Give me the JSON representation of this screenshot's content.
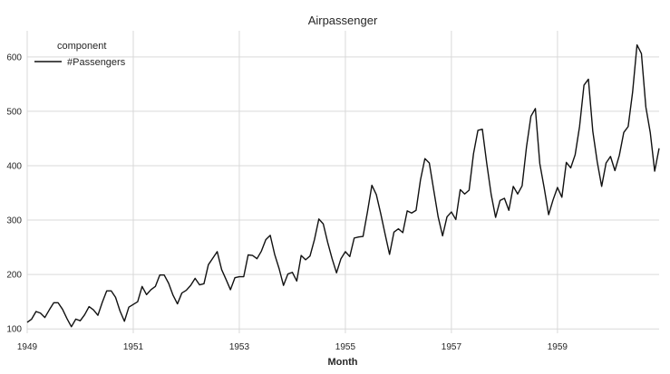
{
  "chart_data": {
    "type": "line",
    "title": "Airpassenger",
    "xlabel": "Month",
    "ylabel": "",
    "xlim": [
      1949.0,
      1960.917
    ],
    "ylim": [
      92,
      648
    ],
    "xticks": [
      1949,
      1951,
      1953,
      1955,
      1957,
      1959
    ],
    "xtick_labels": [
      "1949",
      "1951",
      "1953",
      "1955",
      "1957",
      "1959"
    ],
    "yticks": [
      100,
      200,
      300,
      400,
      500,
      600
    ],
    "ytick_labels": [
      "100",
      "200",
      "300",
      "400",
      "500",
      "600"
    ],
    "grid": true,
    "legend": {
      "title": "component",
      "placement": "top-left",
      "entries": [
        "#Passengers"
      ]
    },
    "series": [
      {
        "name": "#Passengers",
        "color": "#111111",
        "x_start": "1949-01",
        "frequency": "monthly",
        "values": [
          112,
          118,
          132,
          129,
          121,
          135,
          148,
          148,
          136,
          119,
          104,
          118,
          115,
          126,
          141,
          135,
          125,
          149,
          170,
          170,
          158,
          133,
          114,
          140,
          145,
          150,
          178,
          163,
          172,
          178,
          199,
          199,
          184,
          162,
          146,
          166,
          171,
          180,
          193,
          181,
          183,
          218,
          230,
          242,
          209,
          191,
          172,
          194,
          196,
          196,
          236,
          235,
          229,
          243,
          264,
          272,
          237,
          211,
          180,
          201,
          204,
          188,
          235,
          227,
          234,
          264,
          302,
          293,
          259,
          229,
          203,
          229,
          242,
          233,
          267,
          269,
          270,
          315,
          364,
          347,
          312,
          274,
          237,
          278,
          284,
          277,
          317,
          313,
          318,
          374,
          413,
          405,
          355,
          306,
          271,
          306,
          315,
          301,
          356,
          348,
          355,
          422,
          465,
          467,
          404,
          347,
          305,
          336,
          340,
          318,
          362,
          348,
          363,
          435,
          491,
          505,
          404,
          359,
          310,
          337,
          360,
          342,
          406,
          396,
          420,
          472,
          548,
          559,
          463,
          407,
          362,
          405,
          417,
          391,
          419,
          461,
          472,
          535,
          622,
          606,
          508,
          461,
          390,
          432
        ]
      }
    ]
  }
}
